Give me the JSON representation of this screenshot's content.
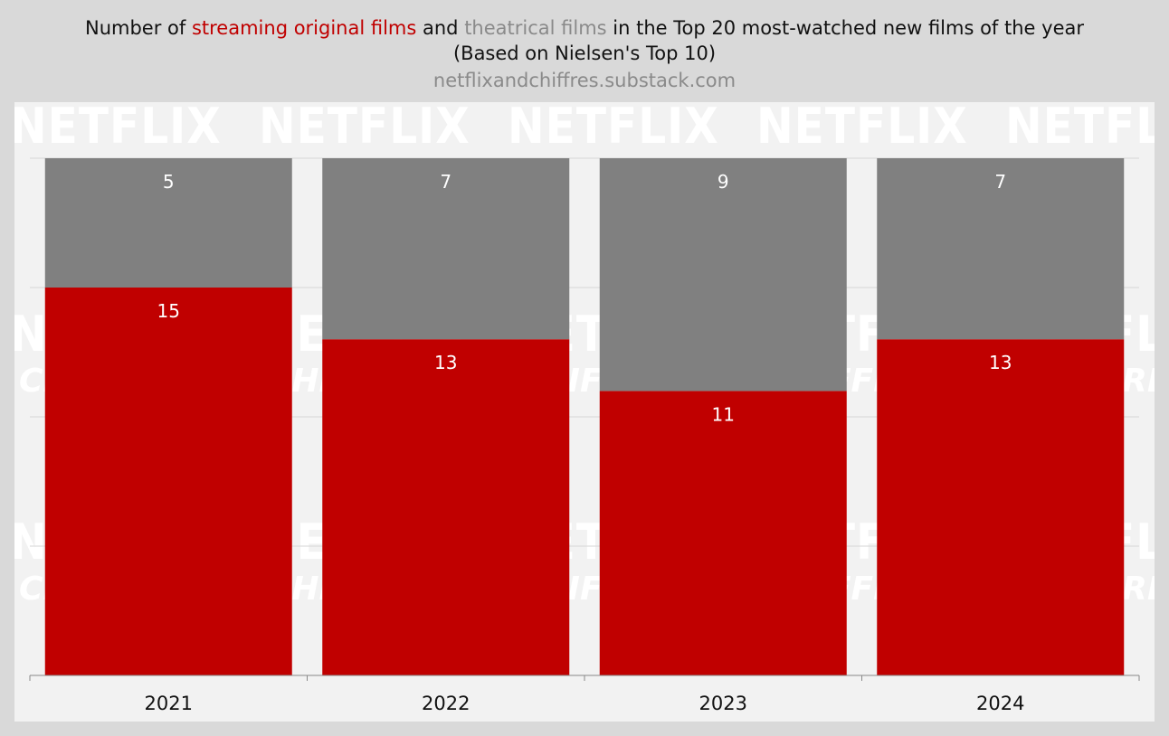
{
  "header": {
    "title_prefix": "Number of ",
    "title_series1": "streaming original films",
    "title_and": " and ",
    "title_series2": "theatrical films",
    "title_suffix": " in the Top 20 most-watched new films of the year",
    "subtitle": "(Based on Nielsen's Top 10)",
    "source": "netflixandchiffres.substack.com"
  },
  "watermark": {
    "text": "NETFLIX",
    "subtext": "CHIFFRES"
  },
  "colors": {
    "streaming": "#c00000",
    "theatrical": "#808080"
  },
  "chart_data": {
    "type": "bar",
    "stacked": true,
    "categories": [
      "2021",
      "2022",
      "2023",
      "2024"
    ],
    "series": [
      {
        "name": "streaming original films",
        "values": [
          15,
          13,
          11,
          13
        ]
      },
      {
        "name": "theatrical films",
        "values": [
          5,
          7,
          9,
          7
        ]
      }
    ],
    "ylim": [
      0,
      20
    ],
    "grid": true,
    "xlabel": "",
    "ylabel": ""
  }
}
